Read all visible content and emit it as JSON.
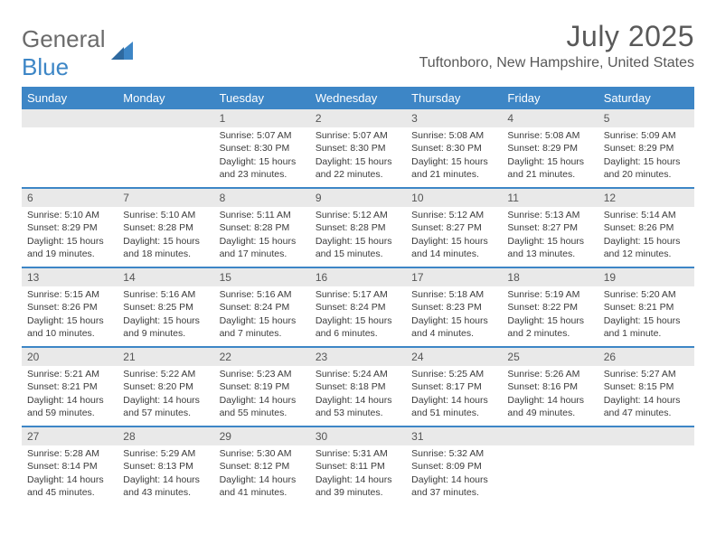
{
  "logo": {
    "line1": "General",
    "line2": "Blue"
  },
  "title": "July 2025",
  "location": "Tuftonboro, New Hampshire, United States",
  "colors": {
    "header_bg": "#3d86c6",
    "header_text": "#ffffff",
    "daynum_bg": "#e9e9e9",
    "text": "#3b3b3b",
    "title_color": "#595959"
  },
  "day_names": [
    "Sunday",
    "Monday",
    "Tuesday",
    "Wednesday",
    "Thursday",
    "Friday",
    "Saturday"
  ],
  "weeks": [
    [
      {
        "num": "",
        "sunrise": "",
        "sunset": "",
        "daylight": ""
      },
      {
        "num": "",
        "sunrise": "",
        "sunset": "",
        "daylight": ""
      },
      {
        "num": "1",
        "sunrise": "Sunrise: 5:07 AM",
        "sunset": "Sunset: 8:30 PM",
        "daylight": "Daylight: 15 hours and 23 minutes."
      },
      {
        "num": "2",
        "sunrise": "Sunrise: 5:07 AM",
        "sunset": "Sunset: 8:30 PM",
        "daylight": "Daylight: 15 hours and 22 minutes."
      },
      {
        "num": "3",
        "sunrise": "Sunrise: 5:08 AM",
        "sunset": "Sunset: 8:30 PM",
        "daylight": "Daylight: 15 hours and 21 minutes."
      },
      {
        "num": "4",
        "sunrise": "Sunrise: 5:08 AM",
        "sunset": "Sunset: 8:29 PM",
        "daylight": "Daylight: 15 hours and 21 minutes."
      },
      {
        "num": "5",
        "sunrise": "Sunrise: 5:09 AM",
        "sunset": "Sunset: 8:29 PM",
        "daylight": "Daylight: 15 hours and 20 minutes."
      }
    ],
    [
      {
        "num": "6",
        "sunrise": "Sunrise: 5:10 AM",
        "sunset": "Sunset: 8:29 PM",
        "daylight": "Daylight: 15 hours and 19 minutes."
      },
      {
        "num": "7",
        "sunrise": "Sunrise: 5:10 AM",
        "sunset": "Sunset: 8:28 PM",
        "daylight": "Daylight: 15 hours and 18 minutes."
      },
      {
        "num": "8",
        "sunrise": "Sunrise: 5:11 AM",
        "sunset": "Sunset: 8:28 PM",
        "daylight": "Daylight: 15 hours and 17 minutes."
      },
      {
        "num": "9",
        "sunrise": "Sunrise: 5:12 AM",
        "sunset": "Sunset: 8:28 PM",
        "daylight": "Daylight: 15 hours and 15 minutes."
      },
      {
        "num": "10",
        "sunrise": "Sunrise: 5:12 AM",
        "sunset": "Sunset: 8:27 PM",
        "daylight": "Daylight: 15 hours and 14 minutes."
      },
      {
        "num": "11",
        "sunrise": "Sunrise: 5:13 AM",
        "sunset": "Sunset: 8:27 PM",
        "daylight": "Daylight: 15 hours and 13 minutes."
      },
      {
        "num": "12",
        "sunrise": "Sunrise: 5:14 AM",
        "sunset": "Sunset: 8:26 PM",
        "daylight": "Daylight: 15 hours and 12 minutes."
      }
    ],
    [
      {
        "num": "13",
        "sunrise": "Sunrise: 5:15 AM",
        "sunset": "Sunset: 8:26 PM",
        "daylight": "Daylight: 15 hours and 10 minutes."
      },
      {
        "num": "14",
        "sunrise": "Sunrise: 5:16 AM",
        "sunset": "Sunset: 8:25 PM",
        "daylight": "Daylight: 15 hours and 9 minutes."
      },
      {
        "num": "15",
        "sunrise": "Sunrise: 5:16 AM",
        "sunset": "Sunset: 8:24 PM",
        "daylight": "Daylight: 15 hours and 7 minutes."
      },
      {
        "num": "16",
        "sunrise": "Sunrise: 5:17 AM",
        "sunset": "Sunset: 8:24 PM",
        "daylight": "Daylight: 15 hours and 6 minutes."
      },
      {
        "num": "17",
        "sunrise": "Sunrise: 5:18 AM",
        "sunset": "Sunset: 8:23 PM",
        "daylight": "Daylight: 15 hours and 4 minutes."
      },
      {
        "num": "18",
        "sunrise": "Sunrise: 5:19 AM",
        "sunset": "Sunset: 8:22 PM",
        "daylight": "Daylight: 15 hours and 2 minutes."
      },
      {
        "num": "19",
        "sunrise": "Sunrise: 5:20 AM",
        "sunset": "Sunset: 8:21 PM",
        "daylight": "Daylight: 15 hours and 1 minute."
      }
    ],
    [
      {
        "num": "20",
        "sunrise": "Sunrise: 5:21 AM",
        "sunset": "Sunset: 8:21 PM",
        "daylight": "Daylight: 14 hours and 59 minutes."
      },
      {
        "num": "21",
        "sunrise": "Sunrise: 5:22 AM",
        "sunset": "Sunset: 8:20 PM",
        "daylight": "Daylight: 14 hours and 57 minutes."
      },
      {
        "num": "22",
        "sunrise": "Sunrise: 5:23 AM",
        "sunset": "Sunset: 8:19 PM",
        "daylight": "Daylight: 14 hours and 55 minutes."
      },
      {
        "num": "23",
        "sunrise": "Sunrise: 5:24 AM",
        "sunset": "Sunset: 8:18 PM",
        "daylight": "Daylight: 14 hours and 53 minutes."
      },
      {
        "num": "24",
        "sunrise": "Sunrise: 5:25 AM",
        "sunset": "Sunset: 8:17 PM",
        "daylight": "Daylight: 14 hours and 51 minutes."
      },
      {
        "num": "25",
        "sunrise": "Sunrise: 5:26 AM",
        "sunset": "Sunset: 8:16 PM",
        "daylight": "Daylight: 14 hours and 49 minutes."
      },
      {
        "num": "26",
        "sunrise": "Sunrise: 5:27 AM",
        "sunset": "Sunset: 8:15 PM",
        "daylight": "Daylight: 14 hours and 47 minutes."
      }
    ],
    [
      {
        "num": "27",
        "sunrise": "Sunrise: 5:28 AM",
        "sunset": "Sunset: 8:14 PM",
        "daylight": "Daylight: 14 hours and 45 minutes."
      },
      {
        "num": "28",
        "sunrise": "Sunrise: 5:29 AM",
        "sunset": "Sunset: 8:13 PM",
        "daylight": "Daylight: 14 hours and 43 minutes."
      },
      {
        "num": "29",
        "sunrise": "Sunrise: 5:30 AM",
        "sunset": "Sunset: 8:12 PM",
        "daylight": "Daylight: 14 hours and 41 minutes."
      },
      {
        "num": "30",
        "sunrise": "Sunrise: 5:31 AM",
        "sunset": "Sunset: 8:11 PM",
        "daylight": "Daylight: 14 hours and 39 minutes."
      },
      {
        "num": "31",
        "sunrise": "Sunrise: 5:32 AM",
        "sunset": "Sunset: 8:09 PM",
        "daylight": "Daylight: 14 hours and 37 minutes."
      },
      {
        "num": "",
        "sunrise": "",
        "sunset": "",
        "daylight": ""
      },
      {
        "num": "",
        "sunrise": "",
        "sunset": "",
        "daylight": ""
      }
    ]
  ]
}
